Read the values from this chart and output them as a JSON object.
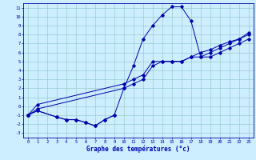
{
  "xlabel": "Graphe des températures (°c)",
  "bg_color": "#cceeff",
  "line_color": "#0000aa",
  "grid_color": "#99cccc",
  "xlim": [
    -0.5,
    23.5
  ],
  "ylim": [
    -3.5,
    11.5
  ],
  "xticks": [
    0,
    1,
    2,
    3,
    4,
    5,
    6,
    7,
    8,
    9,
    10,
    11,
    12,
    13,
    14,
    15,
    16,
    17,
    18,
    19,
    20,
    21,
    22,
    23
  ],
  "yticks": [
    -3,
    -2,
    -1,
    0,
    1,
    2,
    3,
    4,
    5,
    6,
    7,
    8,
    9,
    10,
    11
  ],
  "curve1_x": [
    0,
    1,
    3,
    4,
    5,
    6,
    7,
    8,
    9,
    10,
    11,
    12,
    13,
    14,
    15,
    16,
    17,
    18,
    19,
    20,
    21,
    22,
    23
  ],
  "curve1_y": [
    -1.0,
    -0.5,
    -1.2,
    -1.5,
    -1.5,
    -1.8,
    -2.2,
    -1.5,
    -1.0,
    2.0,
    4.5,
    7.5,
    9.0,
    10.2,
    11.1,
    11.1,
    9.5,
    5.5,
    5.5,
    6.0,
    6.5,
    7.0,
    7.5
  ],
  "curve2_x": [
    0,
    1,
    10,
    11,
    12,
    13,
    14,
    15,
    16,
    17,
    18,
    19,
    20,
    21,
    22,
    23
  ],
  "curve2_y": [
    -1.0,
    -0.3,
    2.0,
    2.5,
    3.0,
    4.5,
    5.0,
    5.0,
    5.0,
    5.5,
    5.5,
    6.0,
    6.5,
    7.0,
    7.5,
    8.0
  ],
  "curve3_x": [
    0,
    1,
    10,
    11,
    12,
    13,
    14,
    15,
    16,
    17,
    18,
    19,
    20,
    21,
    22,
    23
  ],
  "curve3_y": [
    -1.0,
    0.2,
    2.5,
    3.0,
    3.5,
    5.0,
    5.0,
    5.0,
    5.0,
    5.5,
    6.0,
    6.3,
    6.8,
    7.2,
    7.5,
    8.2
  ],
  "curve4_x": [
    0,
    1,
    3,
    4,
    5,
    6,
    7,
    8,
    9
  ],
  "curve4_y": [
    -1.0,
    -0.5,
    -1.2,
    -1.5,
    -1.5,
    -1.8,
    -2.2,
    -1.5,
    -1.0
  ]
}
